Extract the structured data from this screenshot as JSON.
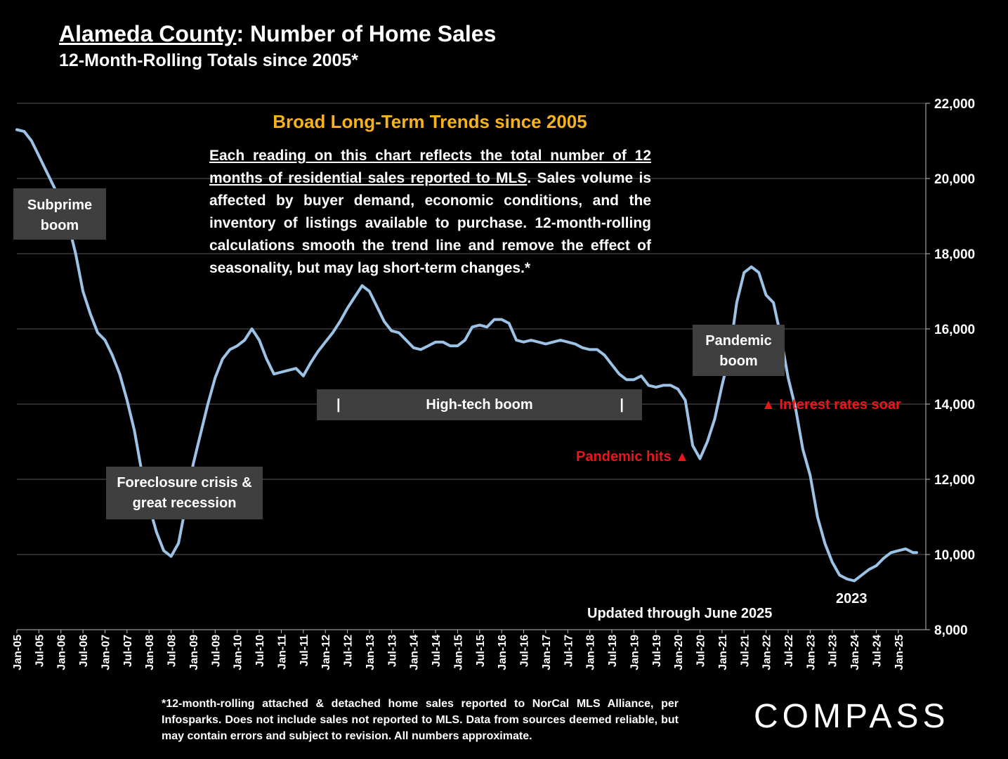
{
  "title": {
    "prefix": "Alameda County",
    "suffix": ":  Number of Home Sales"
  },
  "subtitle": "12-Month-Rolling Totals since 2005*",
  "trends": {
    "heading": "Broad Long-Term Trends since 2005",
    "lead": "Each reading on this chart reflects the total number of 12 months of residential sales reported to MLS",
    "body": ". Sales volume is affected by buyer demand, economic conditions, and the inventory of listings available to purchase. 12-month-rolling calculations smooth the trend line and remove the effect of seasonality, but may lag short-term changes.*"
  },
  "annotations": {
    "subprime": "Subprime boom",
    "foreclosure": "Foreclosure crisis & great recession",
    "hightech": "High-tech boom",
    "hightech_marker": "|",
    "pandemic_boom": "Pandemic boom",
    "pandemic_hits": "Pandemic hits ▲",
    "rates_soar": "▲ Interest rates soar",
    "year_2023": "2023",
    "updated": "Updated through June 2025"
  },
  "footnote": "*12-month-rolling attached & detached home sales reported to NorCal MLS Alliance, per Infosparks. Does not include sales not reported to MLS. Data from sources deemed reliable, but may contain errors and subject to revision. All numbers approximate.",
  "logo": "COMPASS",
  "colors": {
    "line": "#9cc2e5",
    "accent": "#f6b21c",
    "alert": "#e8161b",
    "box": "#3f3f3f"
  },
  "chart_data": {
    "type": "line",
    "title": "Alameda County: Number of Home Sales",
    "subtitle": "12-Month-Rolling Totals since 2005*",
    "xlabel": "",
    "ylabel": "",
    "ylim": [
      8000,
      22000
    ],
    "y_ticks": [
      "8,000",
      "10,000",
      "12,000",
      "14,000",
      "16,000",
      "18,000",
      "20,000",
      "22,000"
    ],
    "x_range": [
      "Jan-05",
      "Jun-25"
    ],
    "x_tick_labels": [
      "Jan-05",
      "Jul-05",
      "Jan-06",
      "Jul-06",
      "Jan-07",
      "Jul-07",
      "Jan-08",
      "Jul-08",
      "Jan-09",
      "Jul-09",
      "Jan-10",
      "Jul-10",
      "Jan-11",
      "Jul-11",
      "Jan-12",
      "Jul-12",
      "Jan-13",
      "Jul-13",
      "Jan-14",
      "Jul-14",
      "Jan-15",
      "Jul-15",
      "Jan-16",
      "Jul-16",
      "Jan-17",
      "Jul-17",
      "Jan-18",
      "Jul-18",
      "Jan-19",
      "Jul-19",
      "Jan-20",
      "Jul-20",
      "Jan-21",
      "Jul-21",
      "Jan-22",
      "Jul-22",
      "Jan-23",
      "Jul-23",
      "Jan-24",
      "Jul-24",
      "Jan-25"
    ],
    "grid": true,
    "legend": "none",
    "series": [
      {
        "points": [
          [
            "Jan-05",
            21300
          ],
          [
            "Mar-05",
            21250
          ],
          [
            "May-05",
            21000
          ],
          [
            "Jul-05",
            20600
          ],
          [
            "Sep-05",
            20200
          ],
          [
            "Nov-05",
            19800
          ],
          [
            "Jan-06",
            19400
          ],
          [
            "Mar-06",
            18800
          ],
          [
            "May-06",
            18000
          ],
          [
            "Jul-06",
            17000
          ],
          [
            "Sep-06",
            16400
          ],
          [
            "Nov-06",
            15900
          ],
          [
            "Jan-07",
            15700
          ],
          [
            "Mar-07",
            15300
          ],
          [
            "May-07",
            14800
          ],
          [
            "Jul-07",
            14100
          ],
          [
            "Sep-07",
            13300
          ],
          [
            "Nov-07",
            12200
          ],
          [
            "Jan-08",
            11300
          ],
          [
            "Mar-08",
            10600
          ],
          [
            "May-08",
            10100
          ],
          [
            "Jul-08",
            9950
          ],
          [
            "Sep-08",
            10300
          ],
          [
            "Nov-08",
            11300
          ],
          [
            "Jan-09",
            12400
          ],
          [
            "Mar-09",
            13200
          ],
          [
            "May-09",
            14000
          ],
          [
            "Jul-09",
            14700
          ],
          [
            "Sep-09",
            15200
          ],
          [
            "Nov-09",
            15450
          ],
          [
            "Jan-10",
            15550
          ],
          [
            "Mar-10",
            15700
          ],
          [
            "May-10",
            16000
          ],
          [
            "Jul-10",
            15700
          ],
          [
            "Sep-10",
            15200
          ],
          [
            "Nov-10",
            14800
          ],
          [
            "Jan-11",
            14850
          ],
          [
            "Mar-11",
            14900
          ],
          [
            "May-11",
            14950
          ],
          [
            "Jul-11",
            14750
          ],
          [
            "Sep-11",
            15100
          ],
          [
            "Nov-11",
            15400
          ],
          [
            "Jan-12",
            15650
          ],
          [
            "Mar-12",
            15900
          ],
          [
            "May-12",
            16200
          ],
          [
            "Jul-12",
            16550
          ],
          [
            "Sep-12",
            16850
          ],
          [
            "Nov-12",
            17150
          ],
          [
            "Jan-13",
            17000
          ],
          [
            "Mar-13",
            16600
          ],
          [
            "May-13",
            16200
          ],
          [
            "Jul-13",
            15950
          ],
          [
            "Sep-13",
            15900
          ],
          [
            "Nov-13",
            15700
          ],
          [
            "Jan-14",
            15500
          ],
          [
            "Mar-14",
            15450
          ],
          [
            "May-14",
            15550
          ],
          [
            "Jul-14",
            15650
          ],
          [
            "Sep-14",
            15650
          ],
          [
            "Nov-14",
            15550
          ],
          [
            "Jan-15",
            15550
          ],
          [
            "Mar-15",
            15700
          ],
          [
            "May-15",
            16050
          ],
          [
            "Jul-15",
            16100
          ],
          [
            "Sep-15",
            16050
          ],
          [
            "Nov-15",
            16250
          ],
          [
            "Jan-16",
            16250
          ],
          [
            "Mar-16",
            16150
          ],
          [
            "May-16",
            15700
          ],
          [
            "Jul-16",
            15650
          ],
          [
            "Sep-16",
            15700
          ],
          [
            "Nov-16",
            15650
          ],
          [
            "Jan-17",
            15600
          ],
          [
            "Mar-17",
            15650
          ],
          [
            "May-17",
            15700
          ],
          [
            "Jul-17",
            15650
          ],
          [
            "Sep-17",
            15600
          ],
          [
            "Nov-17",
            15500
          ],
          [
            "Jan-18",
            15450
          ],
          [
            "Mar-18",
            15450
          ],
          [
            "May-18",
            15300
          ],
          [
            "Jul-18",
            15050
          ],
          [
            "Sep-18",
            14800
          ],
          [
            "Nov-18",
            14650
          ],
          [
            "Jan-19",
            14650
          ],
          [
            "Mar-19",
            14750
          ],
          [
            "May-19",
            14500
          ],
          [
            "Jul-19",
            14450
          ],
          [
            "Sep-19",
            14500
          ],
          [
            "Nov-19",
            14500
          ],
          [
            "Jan-20",
            14400
          ],
          [
            "Mar-20",
            14100
          ],
          [
            "May-20",
            12900
          ],
          [
            "Jul-20",
            12550
          ],
          [
            "Sep-20",
            13000
          ],
          [
            "Nov-20",
            13600
          ],
          [
            "Jan-21",
            14500
          ],
          [
            "Mar-21",
            15300
          ],
          [
            "May-21",
            16700
          ],
          [
            "Jul-21",
            17500
          ],
          [
            "Sep-21",
            17650
          ],
          [
            "Nov-21",
            17500
          ],
          [
            "Jan-22",
            16900
          ],
          [
            "Mar-22",
            16700
          ],
          [
            "May-22",
            15800
          ],
          [
            "Jul-22",
            14700
          ],
          [
            "Sep-22",
            13900
          ],
          [
            "Nov-22",
            12800
          ],
          [
            "Jan-23",
            12100
          ],
          [
            "Mar-23",
            11000
          ],
          [
            "May-23",
            10300
          ],
          [
            "Jul-23",
            9800
          ],
          [
            "Sep-23",
            9450
          ],
          [
            "Nov-23",
            9350
          ],
          [
            "Jan-24",
            9300
          ],
          [
            "Mar-24",
            9450
          ],
          [
            "May-24",
            9600
          ],
          [
            "Jul-24",
            9700
          ],
          [
            "Sep-24",
            9900
          ],
          [
            "Nov-24",
            10050
          ],
          [
            "Jan-25",
            10100
          ],
          [
            "Mar-25",
            10150
          ],
          [
            "May-25",
            10050
          ],
          [
            "Jun-25",
            10050
          ]
        ]
      }
    ]
  }
}
